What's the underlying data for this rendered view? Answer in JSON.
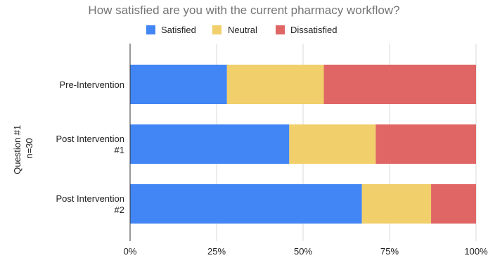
{
  "chart_data": {
    "type": "bar",
    "orientation": "horizontal",
    "stacked": "percent",
    "title": "How satisfied are you with the current pharmacy workflow?",
    "ylabel_lines": [
      "Question #1",
      "n=30"
    ],
    "categories": [
      [
        "Pre-Intervention"
      ],
      [
        "Post Intervention",
        "#1"
      ],
      [
        "Post Intervention",
        "#2"
      ]
    ],
    "series": [
      {
        "name": "Satisfied",
        "color": "#4285f4",
        "values": [
          28,
          46,
          67
        ]
      },
      {
        "name": "Neutral",
        "color": "#f1cf6b",
        "values": [
          28,
          25,
          20
        ]
      },
      {
        "name": "Dissatisfied",
        "color": "#e06666",
        "values": [
          44,
          29,
          13
        ]
      }
    ],
    "xlim": [
      0,
      100
    ],
    "x_ticks": [
      {
        "value": 0,
        "label": "0%"
      },
      {
        "value": 25,
        "label": "25%"
      },
      {
        "value": 50,
        "label": "50%"
      },
      {
        "value": 75,
        "label": "75%"
      },
      {
        "value": 100,
        "label": "100%"
      }
    ],
    "grid": true,
    "legend_position": "top"
  }
}
